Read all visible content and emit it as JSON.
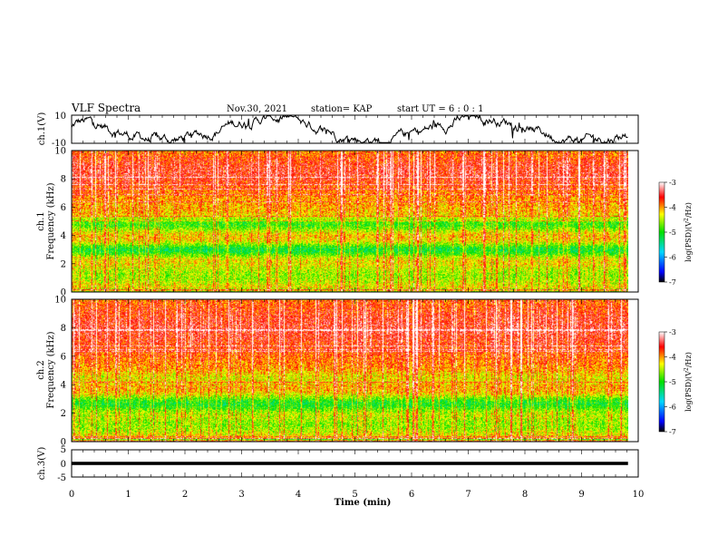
{
  "header": {
    "title": "VLF Spectra",
    "date": "Nov.30, 2021",
    "station": "station= KAP",
    "start": "start  UT =   6 : 0  : 1"
  },
  "chart_data": [
    {
      "id": "ch1-waveform",
      "type": "line",
      "ylabel": "ch.1(V)",
      "ylim": [
        -10,
        10
      ],
      "yticks": [
        "10",
        "-10"
      ],
      "xlim": [
        0,
        10
      ],
      "data_end_min": 9.82,
      "series": [
        {
          "color": "#000000"
        }
      ]
    },
    {
      "id": "ch1-spectrogram",
      "type": "heatmap",
      "ylabel": "ch.1\nFrequency  (kHz)",
      "ylim": [
        0,
        10
      ],
      "yticks": [
        "0",
        "2",
        "4",
        "6",
        "8",
        "10"
      ],
      "xlim": [
        0,
        10
      ],
      "data_end_min": 9.82,
      "colorbar": {
        "label": "log(PSD)(V²/Hz)",
        "range": [
          -7,
          -3
        ],
        "ticks": [
          "-3",
          "-4",
          "-5",
          "-6",
          "-7"
        ]
      }
    },
    {
      "id": "ch2-spectrogram",
      "type": "heatmap",
      "ylabel": "ch.2\nFrequency  (kHz)",
      "ylim": [
        0,
        10
      ],
      "yticks": [
        "0",
        "2",
        "4",
        "6",
        "8",
        "10"
      ],
      "xlim": [
        0,
        10
      ],
      "data_end_min": 9.82,
      "colorbar": {
        "label": "log(PSD)(V²/Hz)",
        "range": [
          -7,
          -3
        ],
        "ticks": [
          "-3",
          "-4",
          "-5",
          "-6",
          "-7"
        ]
      }
    },
    {
      "id": "ch3-waveform",
      "type": "line",
      "ylabel": "ch.3(V)",
      "ylim": [
        -5,
        5
      ],
      "yticks": [
        "5",
        "0",
        "-5"
      ],
      "xlim": [
        0,
        10
      ],
      "data_end_min": 9.82,
      "series": [
        {
          "color": "#000000",
          "level": [
            -0.6,
            0.6
          ]
        }
      ]
    }
  ],
  "xaxis": {
    "label": "Time  (min)",
    "range": [
      0,
      10
    ],
    "ticks": [
      "0",
      "1",
      "2",
      "3",
      "4",
      "5",
      "6",
      "7",
      "8",
      "9",
      "10"
    ]
  }
}
